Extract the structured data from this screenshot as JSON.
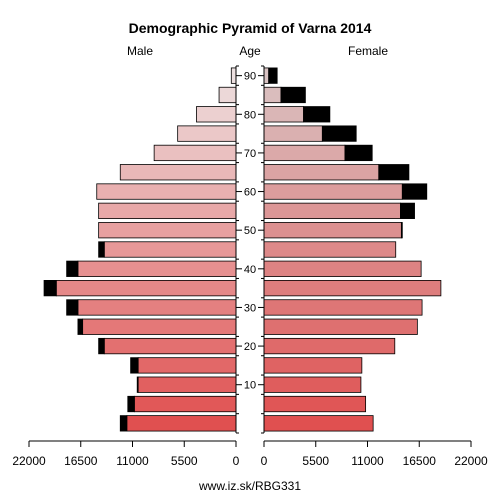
{
  "chart_data": {
    "type": "bar",
    "title": "Demographic Pyramid of Varna 2014",
    "left_label": "Male",
    "center_label": "Age",
    "right_label": "Female",
    "footer": "www.iz.sk/RBG331",
    "x_max": 22000,
    "x_ticks": [
      {
        "value": 22000,
        "label": "22000"
      },
      {
        "value": 16500,
        "label": "16500"
      },
      {
        "value": 11000,
        "label": "11000"
      },
      {
        "value": 5500,
        "label": "5500"
      },
      {
        "value": 0,
        "label": "0"
      }
    ],
    "age_ticks": [
      {
        "age": 10,
        "label": "10"
      },
      {
        "age": 20,
        "label": "20"
      },
      {
        "age": 30,
        "label": "30"
      },
      {
        "age": 40,
        "label": "40"
      },
      {
        "age": 50,
        "label": "50"
      },
      {
        "age": 60,
        "label": "60"
      },
      {
        "age": 70,
        "label": "70"
      },
      {
        "age": 80,
        "label": "80"
      },
      {
        "age": 90,
        "label": "90"
      }
    ],
    "age_groups_start": [
      0,
      5,
      10,
      15,
      20,
      25,
      30,
      35,
      40,
      45,
      50,
      55,
      60,
      65,
      70,
      75,
      80,
      85,
      90
    ],
    "series": [
      {
        "side": "male",
        "base": [
          11600,
          10800,
          10400,
          10400,
          14000,
          16300,
          16800,
          19100,
          16800,
          14000,
          14600,
          14600,
          14800,
          12300,
          8700,
          6200,
          4200,
          1800,
          500
        ],
        "excess": [
          700,
          700,
          100,
          800,
          600,
          500,
          1200,
          1300,
          1200,
          600,
          0,
          0,
          0,
          0,
          0,
          0,
          0,
          0,
          0
        ]
      },
      {
        "side": "female",
        "base": [
          11600,
          10800,
          10300,
          10400,
          13900,
          16300,
          16800,
          18800,
          16700,
          14000,
          14600,
          14500,
          14700,
          12200,
          8600,
          6200,
          4200,
          1800,
          500
        ],
        "excess": [
          0,
          0,
          0,
          0,
          0,
          0,
          0,
          0,
          0,
          0,
          100,
          1500,
          2600,
          3200,
          2900,
          3600,
          2800,
          2600,
          900
        ]
      }
    ],
    "excess_color": "#000000",
    "bar_color_young": "#e05050",
    "bar_color_old": "#ede0e0"
  }
}
